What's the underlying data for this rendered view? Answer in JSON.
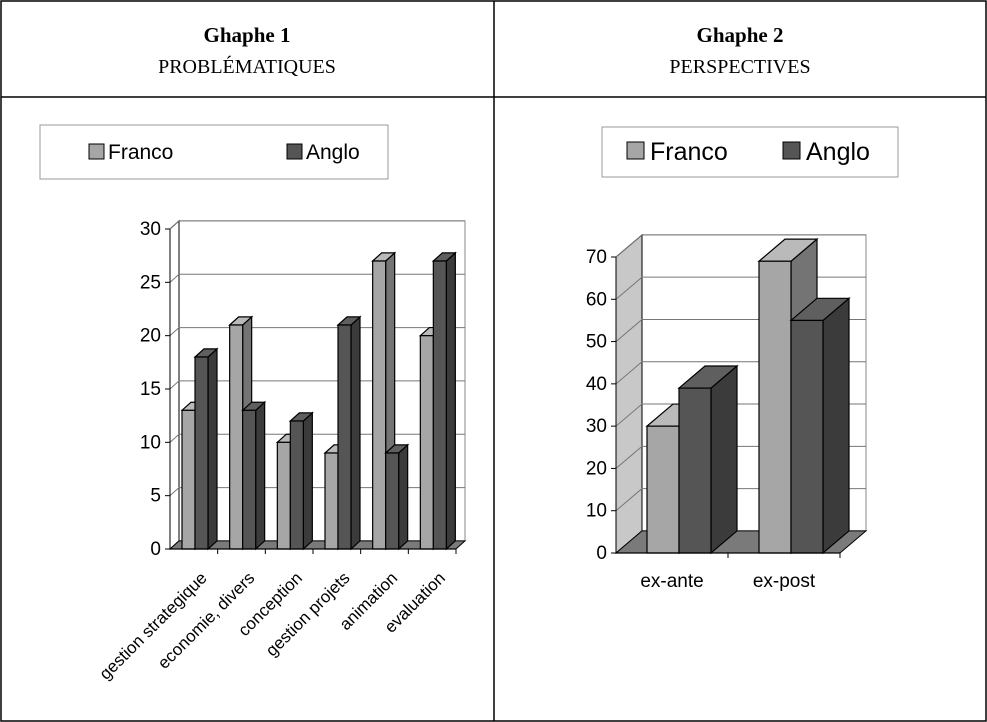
{
  "panels": [
    {
      "title": "Ghaphe 1",
      "subtitle": "PROBLÉMATIQUES"
    },
    {
      "title": "Ghaphe 2",
      "subtitle": "PERSPECTIVES"
    }
  ],
  "colors": {
    "franco": "#a6a6a6",
    "anglo": "#555555",
    "border": "#000000"
  },
  "chart_data": [
    {
      "type": "bar",
      "categories": [
        "gestion strategique",
        "economie, divers",
        "conception",
        "gestion projets",
        "animation",
        "evaluation"
      ],
      "series": [
        {
          "name": "Franco",
          "values": [
            13,
            21,
            10,
            9,
            27,
            20
          ]
        },
        {
          "name": "Anglo",
          "values": [
            18,
            13,
            12,
            21,
            9,
            27
          ]
        }
      ],
      "ylim": [
        0,
        30
      ],
      "yticks": [
        "0",
        "5",
        "10",
        "15",
        "20",
        "25",
        "30"
      ],
      "legend_position": "top",
      "grid": true,
      "style": "3d"
    },
    {
      "type": "bar",
      "categories": [
        "ex-ante",
        "ex-post"
      ],
      "series": [
        {
          "name": "Franco",
          "values": [
            30,
            69
          ]
        },
        {
          "name": "Anglo",
          "values": [
            39,
            55
          ]
        }
      ],
      "ylim": [
        0,
        70
      ],
      "yticks": [
        "0",
        "10",
        "20",
        "30",
        "40",
        "50",
        "60",
        "70"
      ],
      "legend_position": "top",
      "grid": true,
      "style": "3d"
    }
  ]
}
